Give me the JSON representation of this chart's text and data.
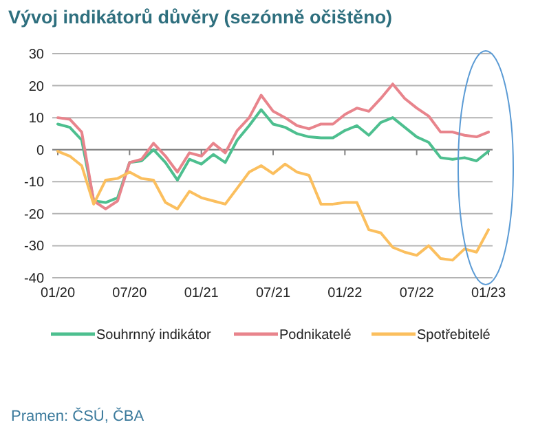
{
  "chart_data": {
    "type": "line",
    "title": "Vývoj indikátorů důvěry (sezónně očištěno)",
    "categories": [
      "01/20",
      null,
      null,
      null,
      null,
      null,
      "07/20",
      null,
      null,
      null,
      null,
      null,
      "01/21",
      null,
      null,
      null,
      null,
      null,
      "07/21",
      null,
      null,
      null,
      null,
      null,
      "01/22",
      null,
      null,
      null,
      null,
      null,
      "07/22",
      null,
      null,
      null,
      null,
      null,
      "01/23"
    ],
    "series": [
      {
        "name": "Souhrnný indikátor",
        "color": "#4dbf8f",
        "values": [
          8,
          7,
          3,
          -16,
          -16.5,
          -15,
          -4,
          -3.5,
          0,
          -4,
          -9.5,
          -3,
          -4.5,
          -1.5,
          -4,
          3,
          7.5,
          12.5,
          8,
          7,
          5,
          4,
          3.7,
          3.7,
          6,
          7.5,
          4.5,
          8.5,
          10,
          7,
          4,
          2.3,
          -2.5,
          -3,
          -2.5,
          -3.5,
          -0.5
        ]
      },
      {
        "name": "Podnikatelé",
        "color": "#e8848c",
        "values": [
          10,
          9.5,
          5.5,
          -16,
          -18.5,
          -16,
          -4,
          -3,
          2,
          -2,
          -7,
          -1,
          -2,
          2,
          -1,
          6,
          10,
          17,
          12,
          10,
          7.5,
          6.5,
          8,
          8,
          11,
          13,
          12,
          16,
          20.5,
          16,
          13,
          10.5,
          5.5,
          5.5,
          4.5,
          4,
          5.5
        ]
      },
      {
        "name": "Spotřebitelé",
        "color": "#fbbf5e",
        "values": [
          -0.5,
          -2,
          -5,
          -17,
          -9.5,
          -9,
          -7,
          -9,
          -9.5,
          -16.5,
          -18.5,
          -13,
          -15,
          -16,
          -17,
          -12,
          -7,
          -5,
          -7.5,
          -4.5,
          -7,
          -8,
          -17,
          -17,
          -16.5,
          -16.5,
          -25,
          -26,
          -30.5,
          -32,
          -33,
          -30,
          -34,
          -34.5,
          -31,
          -32,
          -25
        ]
      }
    ],
    "ylim": [
      -40,
      30
    ],
    "yticks": [
      -40,
      -30,
      -20,
      -10,
      0,
      10,
      20,
      30
    ],
    "grid": "y",
    "legend": "bottom",
    "marker": "none",
    "line_style": "solid",
    "annotations": [
      "Pramen: ČSÚ, ČBA"
    ]
  }
}
